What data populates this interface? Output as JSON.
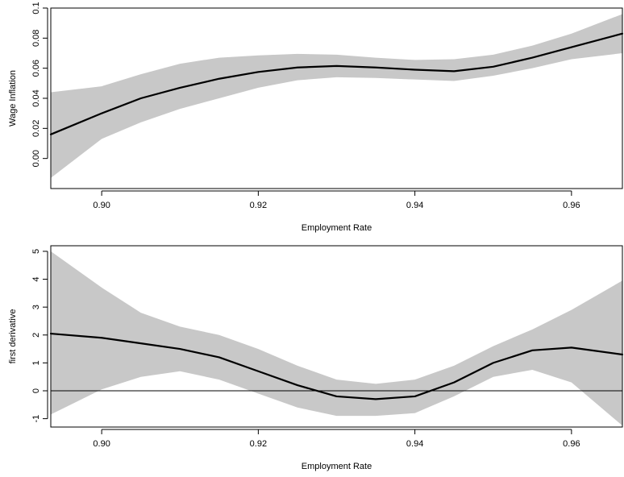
{
  "chart_data": [
    {
      "type": "line",
      "xlabel": "Employment Rate",
      "ylabel": "Wage Inflation",
      "xlim": [
        0.8935,
        0.9665
      ],
      "ylim": [
        -0.02,
        0.1
      ],
      "x_ticks": [
        "0.90",
        "0.92",
        "0.94",
        "0.96"
      ],
      "y_ticks": [
        "0.00",
        "0.02",
        "0.04",
        "0.06",
        "0.08",
        "0.1"
      ],
      "grid": false,
      "band_color": "#c8c8c8",
      "line_color": "#000000",
      "series": [
        {
          "x": [
            0.8935,
            0.9,
            0.905,
            0.91,
            0.915,
            0.92,
            0.925,
            0.93,
            0.935,
            0.94,
            0.945,
            0.95,
            0.955,
            0.96,
            0.9665
          ],
          "fit": [
            0.016,
            0.03,
            0.04,
            0.047,
            0.053,
            0.0575,
            0.0605,
            0.0615,
            0.0605,
            0.059,
            0.058,
            0.061,
            0.067,
            0.074,
            0.083
          ],
          "lower": [
            -0.013,
            0.013,
            0.024,
            0.033,
            0.04,
            0.047,
            0.052,
            0.054,
            0.0535,
            0.0525,
            0.0515,
            0.055,
            0.06,
            0.066,
            0.07
          ],
          "upper": [
            0.044,
            0.048,
            0.056,
            0.063,
            0.067,
            0.0685,
            0.0695,
            0.069,
            0.067,
            0.0655,
            0.066,
            0.069,
            0.075,
            0.083,
            0.096
          ]
        }
      ]
    },
    {
      "type": "line",
      "xlabel": "Employment Rate",
      "ylabel": "first derivative",
      "xlim": [
        0.8935,
        0.9665
      ],
      "ylim": [
        -1.3,
        5.2
      ],
      "x_ticks": [
        "0.90",
        "0.92",
        "0.94",
        "0.96"
      ],
      "y_ticks": [
        "-1",
        "0",
        "1",
        "2",
        "3",
        "4",
        "5"
      ],
      "reference_line_y": 0,
      "grid": false,
      "band_color": "#c8c8c8",
      "line_color": "#000000",
      "series": [
        {
          "x": [
            0.8935,
            0.9,
            0.905,
            0.91,
            0.915,
            0.92,
            0.925,
            0.93,
            0.935,
            0.94,
            0.945,
            0.95,
            0.955,
            0.96,
            0.9665
          ],
          "fit": [
            2.05,
            1.9,
            1.7,
            1.5,
            1.2,
            0.7,
            0.2,
            -0.2,
            -0.3,
            -0.2,
            0.3,
            1.0,
            1.45,
            1.55,
            1.3
          ],
          "lower": [
            -0.85,
            0.05,
            0.5,
            0.7,
            0.4,
            -0.1,
            -0.6,
            -0.9,
            -0.9,
            -0.8,
            -0.2,
            0.5,
            0.75,
            0.3,
            -1.25
          ],
          "upper": [
            5.0,
            3.7,
            2.8,
            2.3,
            2.0,
            1.5,
            0.9,
            0.4,
            0.25,
            0.4,
            0.9,
            1.6,
            2.2,
            2.9,
            3.95
          ]
        }
      ]
    }
  ]
}
